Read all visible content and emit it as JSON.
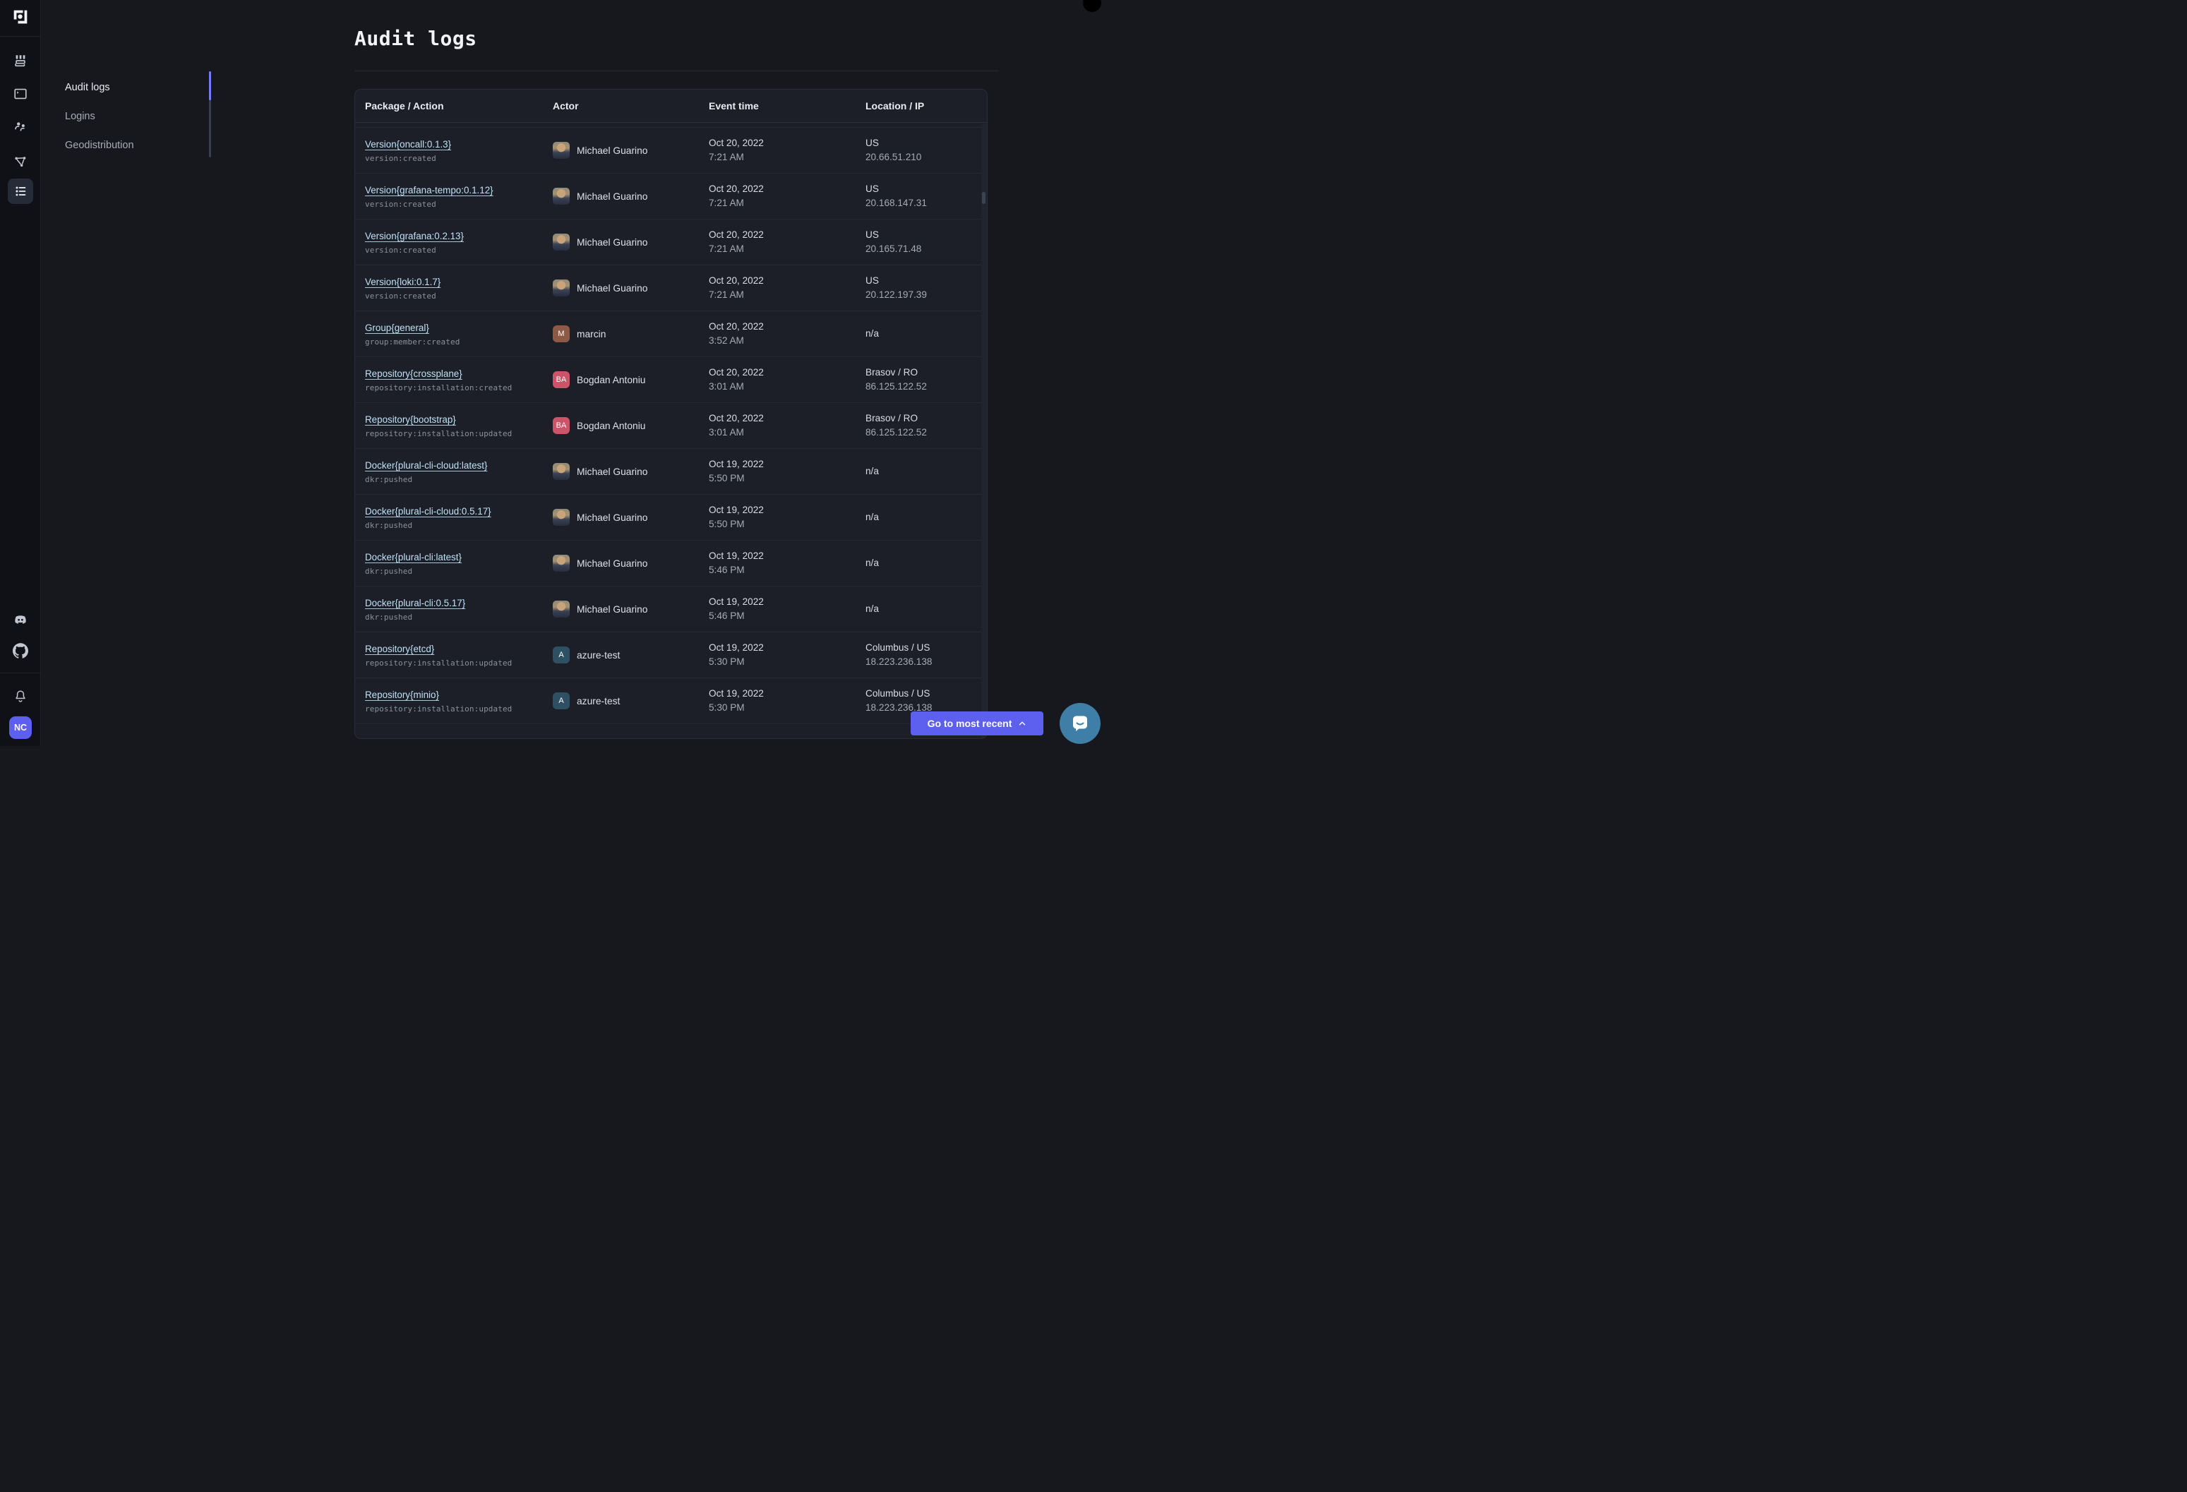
{
  "app": {
    "brand": "Plural"
  },
  "colors": {
    "accent": "#5D5FEF",
    "link": "#BFE2F7",
    "indicator": "#767CF5",
    "intercom": "#3F7FA7"
  },
  "sidebar": {
    "top_icons": [
      {
        "name": "marketplace-icon",
        "selected": false
      },
      {
        "name": "terminal-icon",
        "selected": false
      },
      {
        "name": "people-icon",
        "selected": false
      },
      {
        "name": "network-graph-icon",
        "selected": false
      },
      {
        "name": "audit-list-icon",
        "selected": true
      }
    ],
    "bottom_icons": [
      {
        "name": "discord-icon"
      },
      {
        "name": "github-icon"
      },
      {
        "name": "bell-icon"
      }
    ],
    "user_avatar": {
      "initials": "NC",
      "color": "#5D5FF0"
    }
  },
  "subnav": {
    "items": [
      {
        "label": "Audit logs",
        "active": true
      },
      {
        "label": "Logins",
        "active": false
      },
      {
        "label": "Geodistribution",
        "active": false
      }
    ]
  },
  "page": {
    "title": "Audit logs"
  },
  "table": {
    "columns": [
      "Package / Action",
      "Actor",
      "Event time",
      "Location / IP"
    ],
    "rows": [
      {
        "package": "Version{oncall:0.1.3}",
        "action": "version:created",
        "actor": "Michael Guarino",
        "avatar": {
          "type": "photo",
          "initials": "MG",
          "color": ""
        },
        "date": "Oct 20, 2022",
        "time": "7:21 AM",
        "location": "US",
        "ip": "20.66.51.210"
      },
      {
        "package": "Version{grafana-tempo:0.1.12}",
        "action": "version:created",
        "actor": "Michael Guarino",
        "avatar": {
          "type": "photo",
          "initials": "MG",
          "color": ""
        },
        "date": "Oct 20, 2022",
        "time": "7:21 AM",
        "location": "US",
        "ip": "20.168.147.31"
      },
      {
        "package": "Version{grafana:0.2.13}",
        "action": "version:created",
        "actor": "Michael Guarino",
        "avatar": {
          "type": "photo",
          "initials": "MG",
          "color": ""
        },
        "date": "Oct 20, 2022",
        "time": "7:21 AM",
        "location": "US",
        "ip": "20.165.71.48"
      },
      {
        "package": "Version{loki:0.1.7}",
        "action": "version:created",
        "actor": "Michael Guarino",
        "avatar": {
          "type": "photo",
          "initials": "MG",
          "color": ""
        },
        "date": "Oct 20, 2022",
        "time": "7:21 AM",
        "location": "US",
        "ip": "20.122.197.39"
      },
      {
        "package": "Group{general}",
        "action": "group:member:created",
        "actor": "marcin",
        "avatar": {
          "type": "initials",
          "initials": "M",
          "color": "#8D5B45"
        },
        "date": "Oct 20, 2022",
        "time": "3:52 AM",
        "location": "n/a",
        "ip": ""
      },
      {
        "package": "Repository{crossplane}",
        "action": "repository:installation:created",
        "actor": "Bogdan Antoniu",
        "avatar": {
          "type": "initials",
          "initials": "BA",
          "color": "#CC5368"
        },
        "date": "Oct 20, 2022",
        "time": "3:01 AM",
        "location": "Brasov / RO",
        "ip": "86.125.122.52"
      },
      {
        "package": "Repository{bootstrap}",
        "action": "repository:installation:updated",
        "actor": "Bogdan Antoniu",
        "avatar": {
          "type": "initials",
          "initials": "BA",
          "color": "#CC5368"
        },
        "date": "Oct 20, 2022",
        "time": "3:01 AM",
        "location": "Brasov / RO",
        "ip": "86.125.122.52"
      },
      {
        "package": "Docker{plural-cli-cloud:latest}",
        "action": "dkr:pushed",
        "actor": "Michael Guarino",
        "avatar": {
          "type": "photo",
          "initials": "MG",
          "color": ""
        },
        "date": "Oct 19, 2022",
        "time": "5:50 PM",
        "location": "n/a",
        "ip": ""
      },
      {
        "package": "Docker{plural-cli-cloud:0.5.17}",
        "action": "dkr:pushed",
        "actor": "Michael Guarino",
        "avatar": {
          "type": "photo",
          "initials": "MG",
          "color": ""
        },
        "date": "Oct 19, 2022",
        "time": "5:50 PM",
        "location": "n/a",
        "ip": ""
      },
      {
        "package": "Docker{plural-cli:latest}",
        "action": "dkr:pushed",
        "actor": "Michael Guarino",
        "avatar": {
          "type": "photo",
          "initials": "MG",
          "color": ""
        },
        "date": "Oct 19, 2022",
        "time": "5:46 PM",
        "location": "n/a",
        "ip": ""
      },
      {
        "package": "Docker{plural-cli:0.5.17}",
        "action": "dkr:pushed",
        "actor": "Michael Guarino",
        "avatar": {
          "type": "photo",
          "initials": "MG",
          "color": ""
        },
        "date": "Oct 19, 2022",
        "time": "5:46 PM",
        "location": "n/a",
        "ip": ""
      },
      {
        "package": "Repository{etcd}",
        "action": "repository:installation:updated",
        "actor": "azure-test",
        "avatar": {
          "type": "initials",
          "initials": "A",
          "color": "#2F4F63"
        },
        "date": "Oct 19, 2022",
        "time": "5:30 PM",
        "location": "Columbus / US",
        "ip": "18.223.236.138"
      },
      {
        "package": "Repository{minio}",
        "action": "repository:installation:updated",
        "actor": "azure-test",
        "avatar": {
          "type": "initials",
          "initials": "A",
          "color": "#2F4F63"
        },
        "date": "Oct 19, 2022",
        "time": "5:30 PM",
        "location": "Columbus / US",
        "ip": "18.223.236.138"
      }
    ]
  },
  "footer": {
    "go_button_label": "Go to most recent"
  }
}
